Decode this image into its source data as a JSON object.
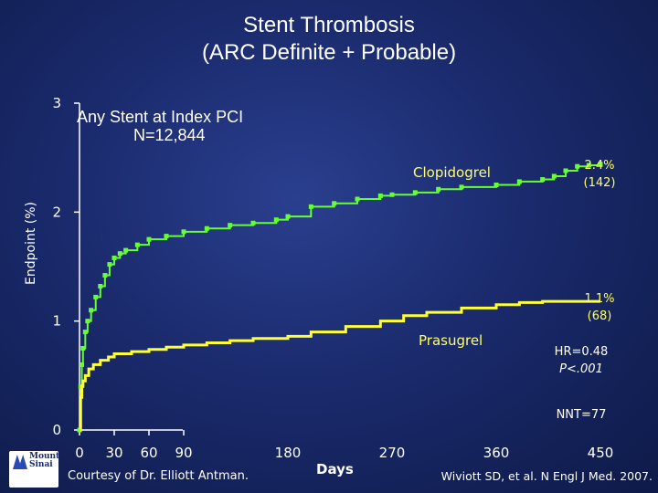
{
  "title_line1": "Stent Thrombosis",
  "title_line2": "(ARC Definite + Probable)",
  "panel_title": "Any Stent at Index PCI",
  "panel_subtitle": "N=12,844",
  "annotations": {
    "clopidogrel_label": "Clopidogrel",
    "clopidogrel_pct": "2.4%",
    "clopidogrel_n": "(142)",
    "prasugrel_label": "Prasugrel",
    "prasugrel_pct": "1.1%",
    "prasugrel_n": "(68)",
    "hr": "HR=0.48",
    "p": "P<.001",
    "nnt": "NNT=77"
  },
  "footer": {
    "courtesy": "Courtesy of Dr. Elliott Antman.",
    "citation": "Wiviott SD, et al. N Engl J Med. 2007.",
    "logo_text": "Mount Sinai"
  },
  "colors": {
    "clopidogrel": "#66ff33",
    "prasugrel": "#ffff33",
    "axis": "#ffffff"
  },
  "chart_data": {
    "type": "line",
    "xlabel": "Days",
    "ylabel": "Endpoint (%)",
    "xlim": [
      0,
      450
    ],
    "ylim": [
      0,
      3
    ],
    "x_ticks": [
      0,
      30,
      60,
      90,
      180,
      270,
      360,
      450
    ],
    "y_ticks": [
      0,
      1,
      2,
      3
    ],
    "series": [
      {
        "name": "Clopidogrel",
        "color": "#66ff33",
        "marker": "square",
        "x": [
          0,
          1,
          2,
          3,
          5,
          7,
          10,
          14,
          18,
          22,
          26,
          30,
          35,
          40,
          50,
          60,
          75,
          90,
          110,
          130,
          150,
          170,
          180,
          200,
          220,
          240,
          260,
          270,
          290,
          310,
          330,
          360,
          380,
          400,
          410,
          420,
          430,
          440,
          450
        ],
        "y": [
          0.0,
          0.4,
          0.6,
          0.75,
          0.9,
          1.0,
          1.1,
          1.22,
          1.32,
          1.42,
          1.52,
          1.58,
          1.62,
          1.65,
          1.7,
          1.75,
          1.78,
          1.82,
          1.85,
          1.88,
          1.9,
          1.93,
          1.96,
          2.05,
          2.08,
          2.12,
          2.15,
          2.16,
          2.18,
          2.21,
          2.23,
          2.25,
          2.28,
          2.3,
          2.33,
          2.38,
          2.42,
          2.43,
          2.44
        ]
      },
      {
        "name": "Prasugrel",
        "color": "#ffff33",
        "marker": "line",
        "x": [
          0,
          1,
          2,
          3,
          5,
          8,
          12,
          18,
          25,
          30,
          45,
          60,
          75,
          90,
          110,
          130,
          150,
          180,
          200,
          230,
          260,
          280,
          300,
          330,
          360,
          380,
          400,
          420,
          440,
          450
        ],
        "y": [
          0.0,
          0.3,
          0.4,
          0.45,
          0.5,
          0.56,
          0.6,
          0.64,
          0.67,
          0.7,
          0.72,
          0.74,
          0.76,
          0.78,
          0.8,
          0.82,
          0.84,
          0.86,
          0.9,
          0.95,
          1.0,
          1.05,
          1.08,
          1.12,
          1.15,
          1.17,
          1.18,
          1.18,
          1.18,
          1.18
        ]
      }
    ]
  }
}
